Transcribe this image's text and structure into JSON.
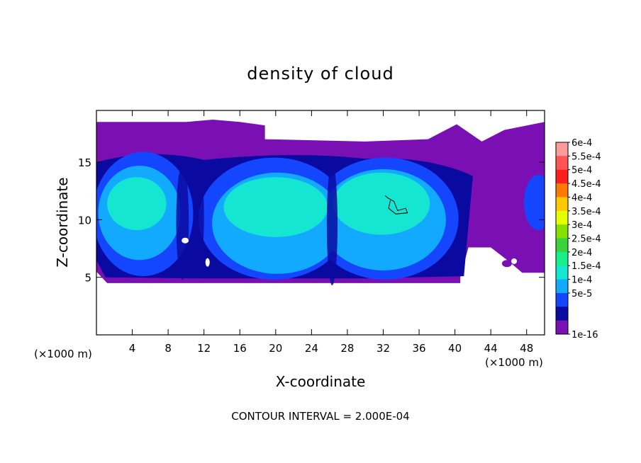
{
  "chart_data": {
    "type": "heatmap",
    "title": "density of cloud",
    "xlabel": "X-coordinate",
    "ylabel": "Z-coordinate",
    "x_unit_left": "(×1000 m)",
    "x_unit_right": "(×1000 m)",
    "xlim": [
      0,
      50
    ],
    "ylim": [
      0,
      19.5
    ],
    "x_ticks": [
      4,
      8,
      12,
      16,
      20,
      24,
      28,
      32,
      36,
      40,
      44,
      48
    ],
    "y_ticks": [
      5,
      10,
      15
    ],
    "colorbar": {
      "labels": [
        "6e-4",
        "5.5e-4",
        "5e-4",
        "4.5e-4",
        "4e-4",
        "3.5e-4",
        "3e-4",
        "2.5e-4",
        "2e-4",
        "1.5e-4",
        "1e-4",
        "5e-5",
        "1e-16"
      ],
      "colors": [
        "#ff9a9a",
        "#ff5555",
        "#ff1d1d",
        "#ff7a00",
        "#ffc800",
        "#e6ff00",
        "#84e000",
        "#3cd23c",
        "#18ee8c",
        "#14e6d2",
        "#12aaff",
        "#1446ff",
        "#0a0aa0",
        "#7a10b4"
      ]
    },
    "cloud": {
      "base_z": 4.5,
      "top_z": 18.5,
      "x_extent": [
        0,
        50
      ],
      "main_cells": [
        {
          "x": 5,
          "z": 11
        },
        {
          "x": 20,
          "z": 10.5
        },
        {
          "x": 32,
          "z": 10.5
        }
      ],
      "contour_marked": {
        "x": 33,
        "z": 11.2,
        "value": "2e-4"
      }
    },
    "footer": "CONTOUR INTERVAL = 2.000E-04",
    "colors": {
      "outer": "#7a10b4",
      "deep": "#0a0aa0",
      "blue": "#1446ff",
      "mid": "#12aaff",
      "light": "#14e6d2"
    }
  }
}
